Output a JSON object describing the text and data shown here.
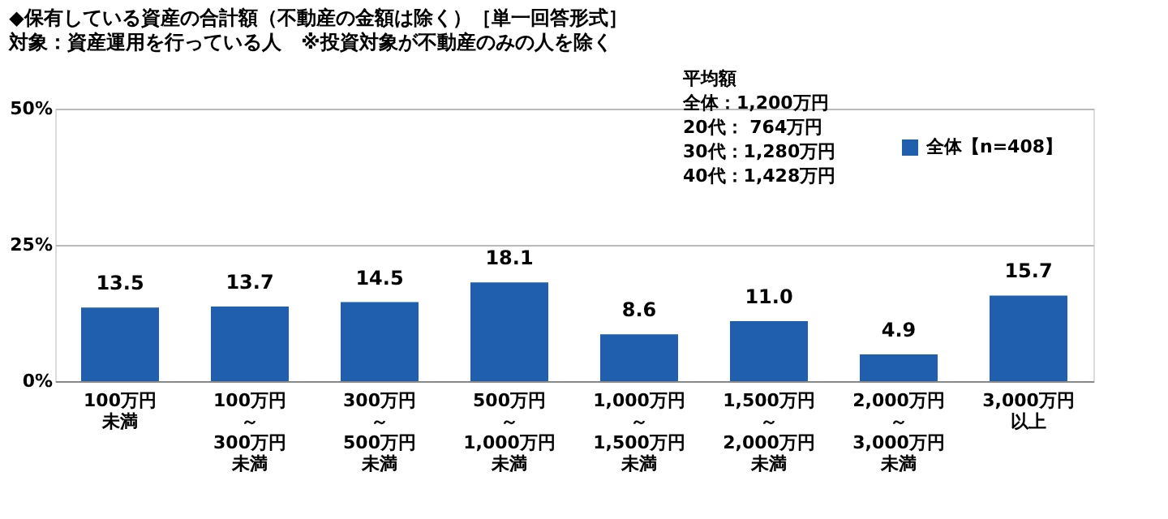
{
  "chart_data": {
    "type": "bar",
    "title": "◆保有している資産の合計額（不動産の金額は除く）［単一回答形式］",
    "subtitle": "対象：資産運用を行っている人　※投資対象が不動産のみの人を除く",
    "categories": [
      "100万円未満",
      "100万円～300万円未満",
      "300万円～500万円未満",
      "500万円～1,000万円未満",
      "1,000万円～1,500万円未満",
      "1,500万円～2,000万円未満",
      "2,000万円～3,000万円未満",
      "3,000万円以上"
    ],
    "series": [
      {
        "name": "全体【n=408】",
        "color": "#1f5fad",
        "values": [
          13.5,
          13.7,
          14.5,
          18.1,
          8.6,
          11.0,
          4.9,
          15.7
        ]
      }
    ],
    "value_labels": [
      "13.5",
      "13.7",
      "14.5",
      "18.1",
      "8.6",
      "11.0",
      "4.9",
      "15.7"
    ],
    "ylim": [
      0,
      50
    ],
    "yticks": [
      {
        "value": 0,
        "label": "0%"
      },
      {
        "value": 25,
        "label": "25%"
      },
      {
        "value": 50,
        "label": "50%"
      }
    ],
    "grid": "y",
    "legend": "top right",
    "annotations": [
      "平均額",
      "全体：1,200万円",
      "20代：  764万円",
      "30代：1,280万円",
      "40代：1,428万円"
    ]
  }
}
